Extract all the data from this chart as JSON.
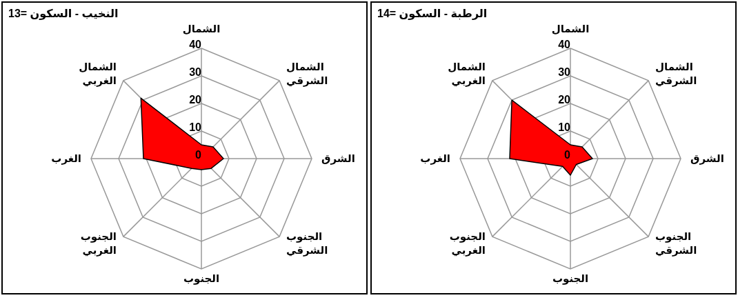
{
  "chart_data": [
    {
      "type": "radar",
      "title": "النخيب - السكون =13",
      "categories": [
        "الشمال",
        "الشمال\nالشرقي",
        "الشرق",
        "الجنوب\nالشرقي",
        "الجنوب",
        "الجنوب\nالغربي",
        "الغرب",
        "الشمال\nالغربي"
      ],
      "series": [
        {
          "color": "#ff0000",
          "values": [
            5,
            6,
            8,
            5,
            4,
            5,
            21,
            31
          ]
        }
      ],
      "ylim": [
        0,
        40
      ],
      "yticks": [
        0,
        10,
        20,
        30,
        40
      ],
      "grid": true
    },
    {
      "type": "radar",
      "title": "الرطبة - السكون =14",
      "categories": [
        "الشمال",
        "الشمال\nالشرقي",
        "الشرق",
        "الجنوب\nالشرقي",
        "الجنوب",
        "الجنوب\nالغربي",
        "الغرب",
        "الشمال\nالغربي"
      ],
      "series": [
        {
          "color": "#ff0000",
          "values": [
            5,
            6,
            8,
            3,
            6,
            4,
            22,
            30
          ]
        }
      ],
      "ylim": [
        0,
        40
      ],
      "yticks": [
        0,
        10,
        20,
        30,
        40
      ],
      "grid": true
    }
  ]
}
